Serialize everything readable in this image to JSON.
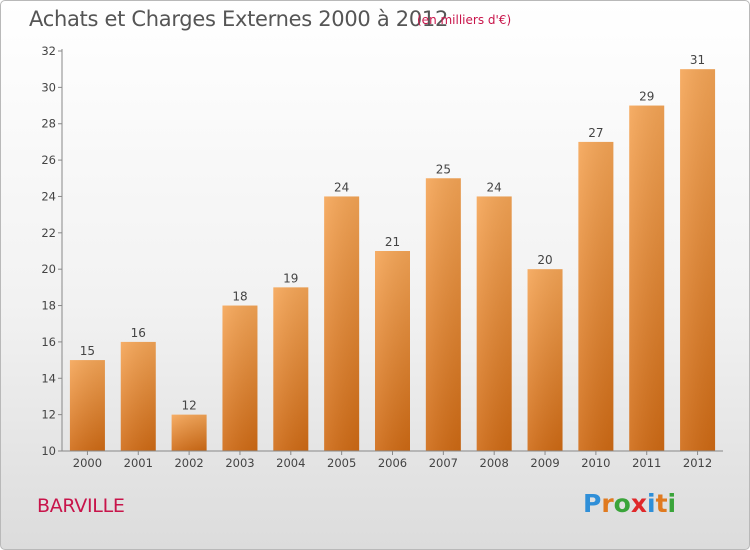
{
  "header": {
    "title": "Achats et Charges Externes 2000 à 2012",
    "subtitle": "(en milliers d'€)"
  },
  "location": "BARVILLE",
  "logo": {
    "text": "Proxiti",
    "letters": [
      {
        "char": "P",
        "color": "#2f8fd8"
      },
      {
        "char": "r",
        "color": "#e07a1f"
      },
      {
        "char": "o",
        "color": "#3aa43a"
      },
      {
        "char": "x",
        "color": "#e0282a"
      },
      {
        "char": "i",
        "color": "#2f8fd8"
      },
      {
        "char": "t",
        "color": "#e07a1f"
      },
      {
        "char": "i",
        "color": "#3aa43a"
      }
    ]
  },
  "chart_data": {
    "type": "bar",
    "categories": [
      "2000",
      "2001",
      "2002",
      "2003",
      "2004",
      "2005",
      "2006",
      "2007",
      "2008",
      "2009",
      "2010",
      "2011",
      "2012"
    ],
    "values": [
      15,
      16,
      12,
      18,
      19,
      24,
      21,
      25,
      24,
      20,
      27,
      29,
      31
    ],
    "ylim": [
      10,
      32
    ],
    "yticks": [
      10,
      12,
      14,
      16,
      18,
      20,
      22,
      24,
      26,
      28,
      30,
      32
    ],
    "grid": false,
    "bar_color_top": "#f5a556",
    "bar_color_bottom": "#cf6a14"
  }
}
